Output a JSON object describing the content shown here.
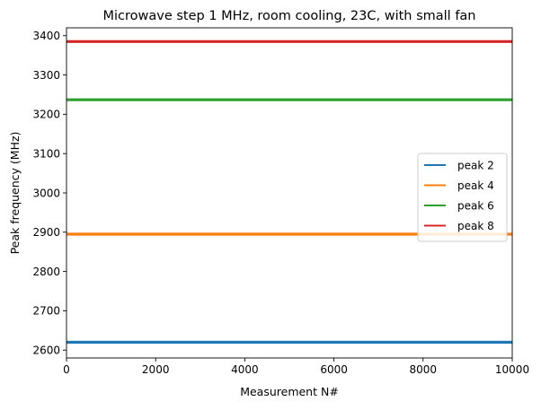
{
  "chart_data": {
    "type": "line",
    "title": "Microwave step 1 MHz, room cooling, 23C, with small fan",
    "xlabel": "Measurement N#",
    "ylabel": "Peak frequency (MHz)",
    "xlim": [
      0,
      10000
    ],
    "ylim": [
      2580,
      3420
    ],
    "x_ticks": [
      0,
      2000,
      4000,
      6000,
      8000,
      10000
    ],
    "x_tick_labels": [
      "0",
      "2000",
      "4000",
      "6000",
      "8000",
      "10000"
    ],
    "y_ticks": [
      2600,
      2700,
      2800,
      2900,
      3000,
      3100,
      3200,
      3300,
      3400
    ],
    "y_tick_labels": [
      "2600",
      "2700",
      "2800",
      "2900",
      "3000",
      "3100",
      "3200",
      "3300",
      "3400"
    ],
    "grid": false,
    "legend_position": "center-right",
    "x": [
      0,
      10000
    ],
    "series": [
      {
        "name": "peak 2",
        "color": "#1f77b4",
        "values": [
          2620,
          2620
        ]
      },
      {
        "name": "peak 4",
        "color": "#ff7f0e",
        "values": [
          2895,
          2895
        ]
      },
      {
        "name": "peak 6",
        "color": "#2ca02c",
        "values": [
          3237,
          3237
        ]
      },
      {
        "name": "peak 8",
        "color": "#d62728",
        "values": [
          3385,
          3385
        ]
      }
    ]
  }
}
